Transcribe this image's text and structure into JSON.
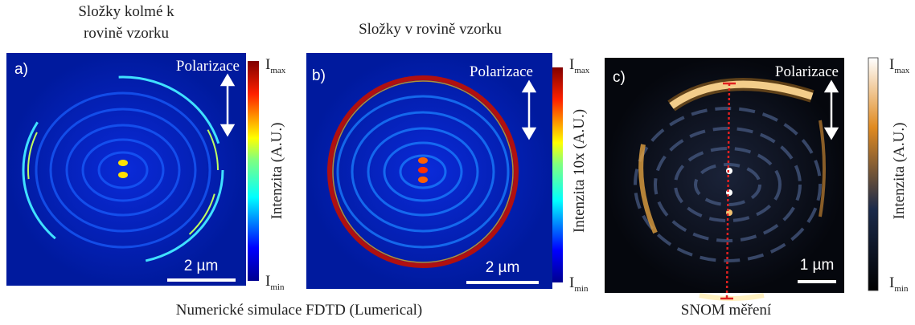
{
  "figure": {
    "panels": [
      {
        "title_lines": [
          "Složky kolmé k",
          "rovině vzorku"
        ],
        "label": "a)",
        "polarization": "Polarizace",
        "scalebar": "2 µm",
        "colorbar": {
          "title": "Intenzita (A.U.)",
          "max": {
            "symbol": "I",
            "sub": "max"
          },
          "min": {
            "symbol": "I",
            "sub": "min"
          }
        }
      },
      {
        "title_lines": [
          "Složky v rovině vzorku"
        ],
        "label": "b)",
        "polarization": "Polarizace",
        "scalebar": "2 µm",
        "colorbar": {
          "title": "Intenzita 10x (A.U.)",
          "max": {
            "symbol": "I",
            "sub": "max"
          },
          "min": {
            "symbol": "I",
            "sub": "min"
          }
        }
      },
      {
        "label": "c)",
        "polarization": "Polarizace",
        "scalebar": "1 µm",
        "colorbar": {
          "title": "Intenzita (A.U.)",
          "max": {
            "symbol": "I",
            "sub": "max"
          },
          "min": {
            "symbol": "I",
            "sub": "min"
          }
        }
      }
    ],
    "captions": [
      "Numerické simulace FDTD (Lumerical)",
      "SNOM měření"
    ]
  }
}
